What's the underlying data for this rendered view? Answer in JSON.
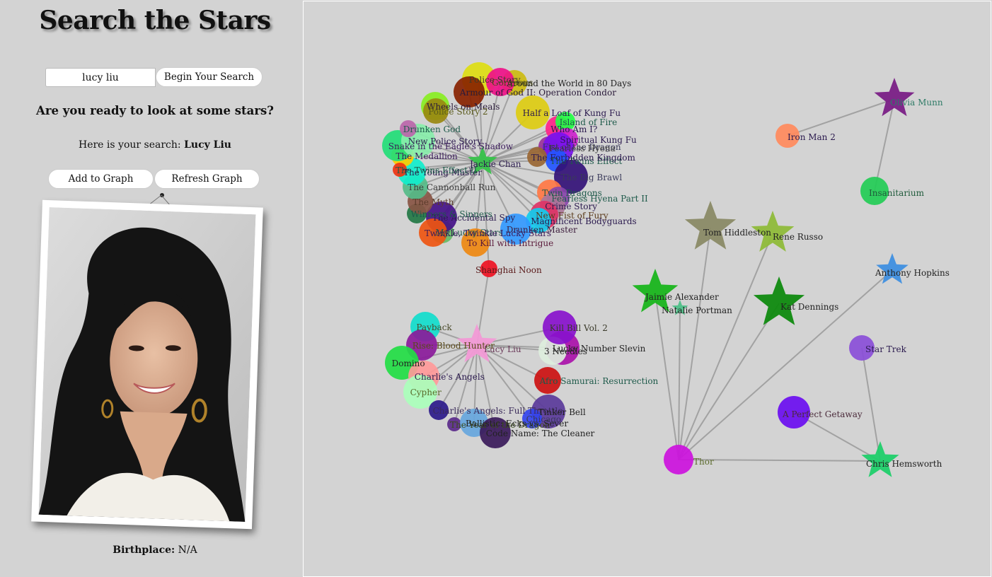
{
  "app": {
    "title": "Search the Stars",
    "search": {
      "value": "lucy liu",
      "button_label": "Begin Your Search"
    },
    "prompt": "Are you ready to look at some stars?",
    "search_result": {
      "prefix": "Here is your search:",
      "name": "Lucy Liu"
    },
    "buttons": {
      "add": "Add to Graph",
      "refresh": "Refresh Graph"
    },
    "birthplace": {
      "label": "Birthplace:",
      "value": "N/A"
    }
  },
  "graph": {
    "edge_color": "#999999",
    "actors": [
      {
        "id": "jackie",
        "name": "Jackie Chan",
        "color": "#37c24a",
        "label_color": "#2b1a4e"
      },
      {
        "id": "lucy",
        "name": "Lucy Liu",
        "color": "#f29ad6",
        "label_color": "#6b3a5a"
      },
      {
        "id": "olivia",
        "name": "Olivia Munn",
        "color": "#7a1f86",
        "label_color": "#2e7b66"
      },
      {
        "id": "tom",
        "name": "Tom Hiddleston",
        "color": "#8a8a66",
        "label_color": "#222222"
      },
      {
        "id": "rene",
        "name": "Rene Russo",
        "color": "#8fbb3a",
        "label_color": "#222222"
      },
      {
        "id": "anthony",
        "name": "Anthony Hopkins",
        "color": "#3f8fe0",
        "label_color": "#222222"
      },
      {
        "id": "jaimie",
        "name": "Jaimie Alexander",
        "color": "#19b51c",
        "label_color": "#222222"
      },
      {
        "id": "natalie",
        "name": "Natalie Portman",
        "color": "#4ec088",
        "label_color": "#222222"
      },
      {
        "id": "kat",
        "name": "Kat Dennings",
        "color": "#0f8a0f",
        "label_color": "#222222"
      },
      {
        "id": "chris",
        "name": "Chris Hemsworth",
        "color": "#1fcf6a",
        "label_color": "#222222"
      }
    ],
    "movies": [
      {
        "id": "ironman2",
        "name": "Iron Man 2",
        "color": "#ff8a5c",
        "label_color": "#2b1a4e"
      },
      {
        "id": "insanitarium",
        "name": "Insanitarium",
        "color": "#22cc55",
        "label_color": "#1e5a3a"
      },
      {
        "id": "startrek",
        "name": "Star Trek",
        "color": "#8a4ed8",
        "label_color": "#2b1a4e"
      },
      {
        "id": "perfectgetaway",
        "name": "A Perfect Getaway",
        "color": "#6a0df0",
        "label_color": "#4a2a3a"
      },
      {
        "id": "thor",
        "name": "Thor",
        "color": "#cc11dd",
        "label_color": "#5a6a2a"
      },
      {
        "id": "shanghainoon",
        "name": "Shanghai Noon",
        "color": "#ee1122",
        "label_color": "#5a1a1a"
      },
      {
        "id": "payback",
        "name": "Payback",
        "color": "#11ddcc",
        "label_color": "#4a4a2a"
      },
      {
        "id": "ridingbloodhunter",
        "name": "Rise: Blood Hunter",
        "color": "#8a1a9a",
        "label_color": "#5a4a1a"
      },
      {
        "id": "domino",
        "name": "Domino",
        "color": "#22dd44",
        "label_color": "#222222"
      },
      {
        "id": "charliesangels",
        "name": "Charlie's Angels",
        "color": "#ff9999",
        "label_color": "#2b1a4e"
      },
      {
        "id": "cypher",
        "name": "Cypher",
        "color": "#aaffbb",
        "label_color": "#5a6a2a"
      },
      {
        "id": "charliesangels2",
        "name": "Charlie's Angels: Full Throttle",
        "color": "#2b1a8a",
        "label_color": "#3a2a5a"
      },
      {
        "id": "yearofthedragon",
        "name": "The Year of the Dragon",
        "color": "#5a2a8a",
        "label_color": "#3a4a1a"
      },
      {
        "id": "ballistic",
        "name": "Ballistic: Ecks vs. Sever",
        "color": "#66a6dd",
        "label_color": "#222222"
      },
      {
        "id": "codename",
        "name": "Code Name: The Cleaner",
        "color": "#3a1a5a",
        "label_color": "#222222"
      },
      {
        "id": "tinkerbell",
        "name": "Tinker Bell",
        "color": "#5a3a9a",
        "label_color": "#222222"
      },
      {
        "id": "chicago",
        "name": "Chicago",
        "color": "#3344ee",
        "label_color": "#3a3a5a"
      },
      {
        "id": "afrosamurai",
        "name": "Afro Samurai: Resurrection",
        "color": "#cc1111",
        "label_color": "#1e5a4a"
      },
      {
        "id": "luckynumberslevin",
        "name": "Lucky Number Slevin",
        "color": "#aa11aa",
        "label_color": "#222222"
      },
      {
        "id": "threeneedles",
        "name": "3 Needles",
        "color": "#ddeedd",
        "label_color": "#222222"
      },
      {
        "id": "killbill",
        "name": "Kill Bill Vol. 2",
        "color": "#8811cc",
        "label_color": "#3a3a2a"
      },
      {
        "id": "aroundtheworld",
        "name": "Around the World in 80 Days",
        "color": "#ccbb11",
        "label_color": "#222222"
      },
      {
        "id": "policestory",
        "name": "Police Story",
        "color": "#dddd11",
        "label_color": "#3a3a2a"
      },
      {
        "id": "gorgeous",
        "name": "Gorgeous",
        "color": "#ee1188",
        "label_color": "#4a4a1a"
      },
      {
        "id": "armourofgod",
        "name": "Armour of God II: Operation Condor",
        "color": "#882200",
        "label_color": "#2a1a3a"
      },
      {
        "id": "wheelsonmeals",
        "name": "Wheels on Meals",
        "color": "#88ee22",
        "label_color": "#2a1a3a"
      },
      {
        "id": "halfaloaf",
        "name": "Half a Loaf of Kung Fu",
        "color": "#ddcc11",
        "label_color": "#2b1a4e"
      },
      {
        "id": "whoami",
        "name": "Who Am I?",
        "color": "#ff2288",
        "label_color": "#2b1a4e"
      },
      {
        "id": "islandoffire",
        "name": "Island of Fire",
        "color": "#22ff44",
        "label_color": "#1e5a4a"
      },
      {
        "id": "spiritualkungfu",
        "name": "Spiritual Kung Fu",
        "color": "#cc22cc",
        "label_color": "#2b1a4e"
      },
      {
        "id": "fistofdragon",
        "name": "Fist of the Dragon",
        "color": "#993399",
        "label_color": "#3a3a5a"
      },
      {
        "id": "fearlesshyena",
        "name": "Fearless Hyena",
        "color": "#7711ee",
        "label_color": "#3a3a3a"
      },
      {
        "id": "twinseffect",
        "name": "The Twins Effect",
        "color": "#2255ff",
        "label_color": "#1e5a4a"
      },
      {
        "id": "forbiddenkingdom",
        "name": "The Forbidden Kingdom",
        "color": "#996633",
        "label_color": "#2b1a4e"
      },
      {
        "id": "bigbrawl",
        "name": "The Big Brawl",
        "color": "#331177",
        "label_color": "#3a3a5a"
      },
      {
        "id": "twindragons",
        "name": "Twin Dragons",
        "color": "#ff7744",
        "label_color": "#1e5a4a"
      },
      {
        "id": "fearlesshyena2",
        "name": "Fearless Hyena Part II",
        "color": "#8844aa",
        "label_color": "#1e5a4a"
      },
      {
        "id": "crimestory",
        "name": "Crime Story",
        "color": "#aa7799",
        "label_color": "#2b1a4e"
      },
      {
        "id": "newfistoffury",
        "name": "New Fist of Fury",
        "color": "#dd3366",
        "label_color": "#5a3a1a"
      },
      {
        "id": "bodyguards",
        "name": "Magnificent Bodyguards",
        "color": "#11ccee",
        "label_color": "#2b1a4e"
      },
      {
        "id": "drunkenmaster",
        "name": "Drunken Master",
        "color": "#3399ff",
        "label_color": "#3a1a3a"
      },
      {
        "id": "tokillwithintrigue",
        "name": "To Kill with Intrigue",
        "color": "#ee8811",
        "label_color": "#5a1a3a"
      },
      {
        "id": "luckystars",
        "name": "My Lucky Stars",
        "color": "#66bb66",
        "label_color": "#1e5a4a"
      },
      {
        "id": "accidentalspy",
        "name": "The Accidental Spy",
        "color": "#441188",
        "label_color": "#2b1a4e"
      },
      {
        "id": "twinkletwinkle",
        "name": "Twinkle, Twinkle Lucky Stars",
        "color": "#ee5511",
        "label_color": "#3a1a5a"
      },
      {
        "id": "winnerssinners",
        "name": "Winners & Sinners",
        "color": "#227744",
        "label_color": "#1e5a4a"
      },
      {
        "id": "themyth",
        "name": "The Myth",
        "color": "#885544",
        "label_color": "#5a3a2a"
      },
      {
        "id": "cannonballrun",
        "name": "The Cannonball Run",
        "color": "#55bb88",
        "label_color": "#3a3a3a"
      },
      {
        "id": "youngmaster",
        "name": "The Young Master",
        "color": "#11eecc",
        "label_color": "#2b1a4e"
      },
      {
        "id": "medallion",
        "name": "The Medallion",
        "color": "#ffcc00",
        "label_color": "#3a1a5a"
      },
      {
        "id": "snakeeagle",
        "name": "Snake in the Eagle's Shadow",
        "color": "#22dd77",
        "label_color": "#3a1a5a"
      },
      {
        "id": "newpolicestory",
        "name": "New Police Story",
        "color": "#88eeaa",
        "label_color": "#2b1a4e"
      },
      {
        "id": "drunkengod",
        "name": "Drunken God",
        "color": "#bb66aa",
        "label_color": "#1e5a4a"
      },
      {
        "id": "policestory2",
        "name": "Police Story 2",
        "color": "#998811",
        "label_color": "#5a5a1a"
      },
      {
        "id": "twinseffect2",
        "name": "The Twins Effect II",
        "color": "#ee3311",
        "label_color": "#1e5a4a"
      }
    ]
  }
}
